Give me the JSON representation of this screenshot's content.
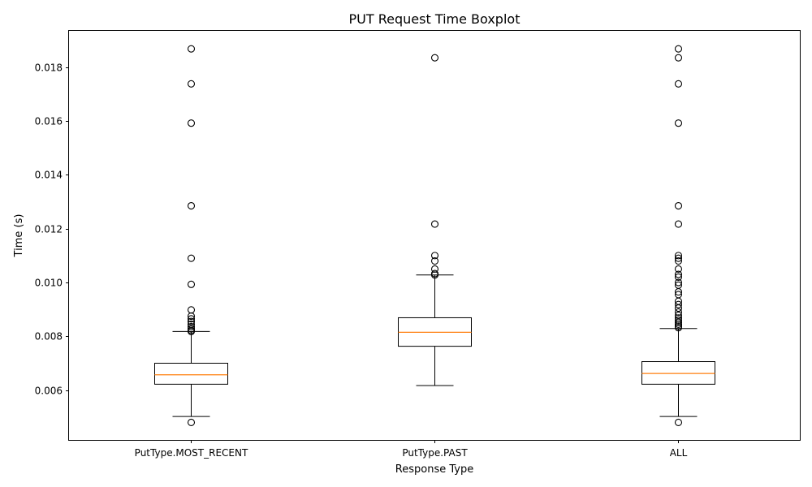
{
  "chart_data": {
    "type": "boxplot",
    "title": "PUT Request Time Boxplot",
    "xlabel": "Response Type",
    "ylabel": "Time (s)",
    "categories": [
      "PutType.MOST_RECENT",
      "PutType.PAST",
      "ALL"
    ],
    "ylim": [
      0.00415,
      0.01935
    ],
    "yticks": [
      0.006,
      0.008,
      0.01,
      0.012,
      0.014,
      0.016,
      0.018
    ],
    "ytick_labels": [
      "0.006",
      "0.008",
      "0.010",
      "0.012",
      "0.014",
      "0.016",
      "0.018"
    ],
    "grid": false,
    "boxes": [
      {
        "category": "PutType.MOST_RECENT",
        "whisker_low": 0.00502,
        "q1": 0.00622,
        "median": 0.00657,
        "q3": 0.007,
        "whisker_high": 0.00818,
        "outliers": [
          0.0048,
          0.00818,
          0.00822,
          0.00828,
          0.00836,
          0.00845,
          0.00855,
          0.00865,
          0.00875,
          0.00898,
          0.00993,
          0.0109,
          0.01285,
          0.01592,
          0.01738,
          0.01868
        ]
      },
      {
        "category": "PutType.PAST",
        "whisker_low": 0.00617,
        "q1": 0.00763,
        "median": 0.00815,
        "q3": 0.00869,
        "whisker_high": 0.01028,
        "outliers": [
          0.01028,
          0.01033,
          0.0105,
          0.0108,
          0.011,
          0.01217,
          0.01835
        ]
      },
      {
        "category": "ALL",
        "whisker_low": 0.00502,
        "q1": 0.00622,
        "median": 0.00662,
        "q3": 0.00706,
        "whisker_high": 0.00829,
        "outliers": [
          0.0048,
          0.00832,
          0.00838,
          0.00845,
          0.00852,
          0.0086,
          0.00868,
          0.00878,
          0.0089,
          0.00905,
          0.00918,
          0.0093,
          0.00955,
          0.00965,
          0.0099,
          0.01,
          0.0102,
          0.0103,
          0.0105,
          0.0108,
          0.0109,
          0.011,
          0.01217,
          0.01285,
          0.01592,
          0.01738,
          0.01835,
          0.01868
        ]
      }
    ],
    "colors": {
      "box": "#000000",
      "median": "#ff7f0e",
      "outlier_edge": "#000000",
      "background": "#ffffff"
    }
  }
}
